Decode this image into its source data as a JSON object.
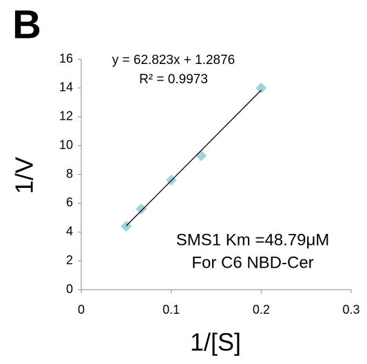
{
  "chart_data": {
    "type": "scatter",
    "panel_label": "B",
    "xlabel": "1/[S]",
    "ylabel": "1/V",
    "x": [
      0.05,
      0.0667,
      0.1,
      0.1333,
      0.2
    ],
    "values": [
      4.4,
      5.6,
      7.6,
      9.3,
      14.0
    ],
    "color": "#9fd4da",
    "trendline": {
      "x": [
        0.05,
        0.2
      ],
      "values": [
        4.43,
        13.85
      ],
      "color": "#000000"
    },
    "annotations": [
      "y = 62.823x + 1.2876",
      "R² = 0.9973",
      "SMS1 Km =48.79μM",
      "For C6 NBD-Cer"
    ],
    "xlim": [
      0,
      0.3
    ],
    "xticks": [
      0,
      0.1,
      0.2,
      0.3
    ],
    "ylim": [
      0,
      16
    ],
    "yticks": [
      0,
      2,
      4,
      6,
      8,
      10,
      12,
      14,
      16
    ],
    "grid": false
  }
}
